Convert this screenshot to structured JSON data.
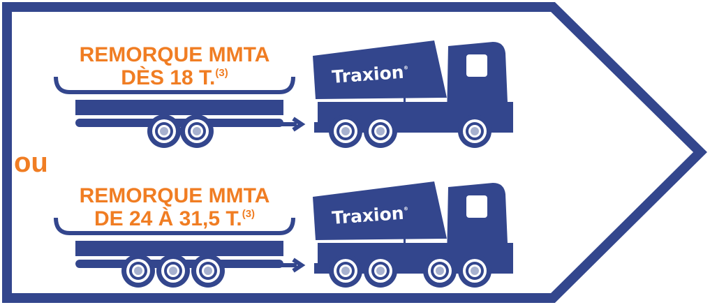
{
  "options": [
    {
      "title": "REMORQUE MMTA",
      "weight": "DÈS 18 T.",
      "note": "(3)",
      "brand": "Traxion",
      "brand_mark": "®"
    },
    {
      "title": "REMORQUE MMTA",
      "weight": "DE 24 À 31,5 T.",
      "note": "(3)",
      "brand": "Traxion",
      "brand_mark": "®"
    }
  ],
  "separator": "ou"
}
